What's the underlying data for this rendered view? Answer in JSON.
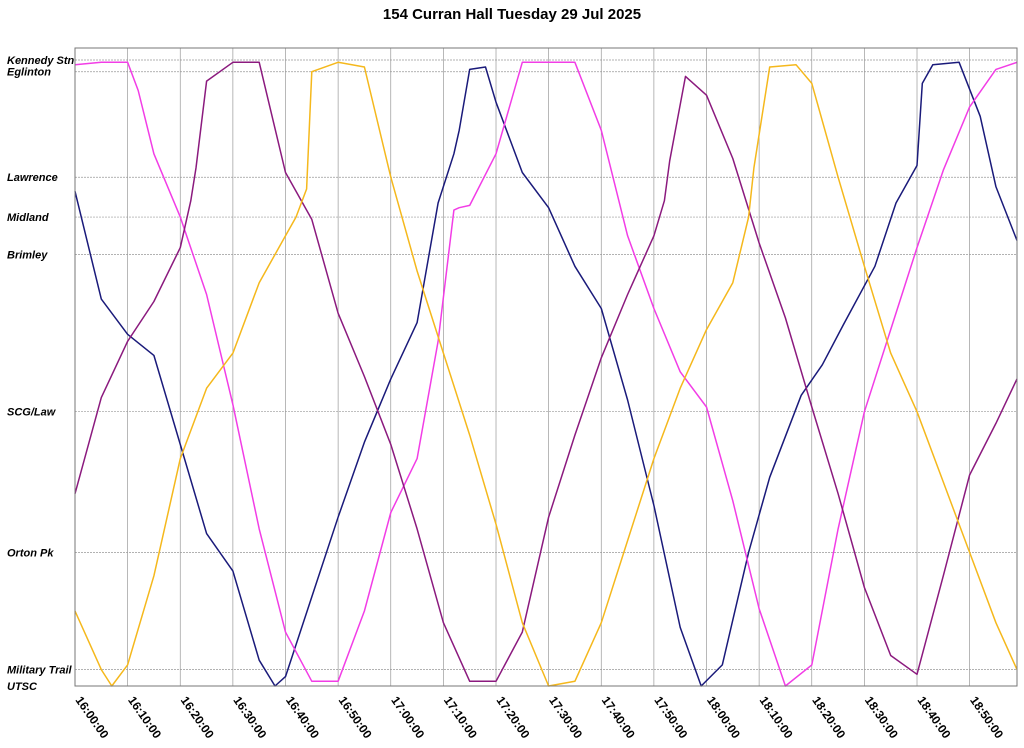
{
  "chart_data": {
    "type": "line",
    "title": "154 Curran Hall Tuesday 29 Jul 2025",
    "y_axis": {
      "stops": [
        {
          "name": "Kennedy Stn",
          "pos": 0
        },
        {
          "name": "Eglinton",
          "pos": 0.5
        },
        {
          "name": "Lawrence",
          "pos": 5
        },
        {
          "name": "Midland",
          "pos": 6.7
        },
        {
          "name": "Brimley",
          "pos": 8.3
        },
        {
          "name": "SCG/Law",
          "pos": 15
        },
        {
          "name": "Orton Pk",
          "pos": 21
        },
        {
          "name": "Military Trail",
          "pos": 26
        },
        {
          "name": "UTSC",
          "pos": 26.7
        }
      ],
      "range": [
        0,
        26.7
      ]
    },
    "x_axis": {
      "tick_labels": [
        "16:00:00",
        "16:10:00",
        "16:20:00",
        "16:30:00",
        "16:40:00",
        "16:50:00",
        "17:00:00",
        "17:10:00",
        "17:20:00",
        "17:30:00",
        "17:40:00",
        "17:50:00",
        "18:00:00",
        "18:10:00",
        "18:20:00",
        "18:30:00",
        "18:40:00",
        "18:50:00"
      ],
      "start": "16:00:00",
      "end": "18:59:00"
    },
    "grid": true,
    "series": [
      {
        "color": "#1a1a7a",
        "points": [
          [
            "16:00:00",
            5.6
          ],
          [
            "16:05:00",
            10.2
          ],
          [
            "16:10:00",
            11.7
          ],
          [
            "16:15:00",
            12.6
          ],
          [
            "16:20:00",
            16.4
          ],
          [
            "16:25:00",
            20.2
          ],
          [
            "16:30:00",
            21.8
          ],
          [
            "16:35:00",
            25.6
          ],
          [
            "16:38:00",
            26.7
          ],
          [
            "16:40:00",
            26.3
          ],
          [
            "16:45:00",
            22.9
          ],
          [
            "16:50:00",
            19.5
          ],
          [
            "16:55:00",
            16.3
          ],
          [
            "17:00:00",
            13.6
          ],
          [
            "17:05:00",
            11.2
          ],
          [
            "17:09:00",
            6.1
          ],
          [
            "17:12:00",
            4.0
          ],
          [
            "17:13:00",
            3.0
          ],
          [
            "17:15:00",
            0.4
          ],
          [
            "17:18:00",
            0.3
          ],
          [
            "17:20:00",
            1.8
          ],
          [
            "17:25:00",
            4.8
          ],
          [
            "17:30:00",
            6.3
          ],
          [
            "17:35:00",
            8.8
          ],
          [
            "17:40:00",
            10.6
          ],
          [
            "17:45:00",
            14.5
          ],
          [
            "17:50:00",
            19.0
          ],
          [
            "17:55:00",
            24.2
          ],
          [
            "17:59:00",
            26.7
          ],
          [
            "18:03:00",
            25.8
          ],
          [
            "18:08:00",
            21.0
          ],
          [
            "18:12:00",
            17.8
          ],
          [
            "18:18:00",
            14.3
          ],
          [
            "18:22:00",
            13.0
          ],
          [
            "18:26:00",
            11.3
          ],
          [
            "18:32:00",
            8.8
          ],
          [
            "18:36:00",
            6.1
          ],
          [
            "18:40:00",
            4.5
          ],
          [
            "18:41:00",
            1.0
          ],
          [
            "18:43:00",
            0.2
          ],
          [
            "18:48:00",
            0.1
          ],
          [
            "18:52:00",
            2.4
          ],
          [
            "18:55:00",
            5.4
          ],
          [
            "18:59:00",
            7.7
          ]
        ]
      },
      {
        "color": "#f23de6",
        "points": [
          [
            "16:00:00",
            0.2
          ],
          [
            "16:05:00",
            0.1
          ],
          [
            "16:10:00",
            0.1
          ],
          [
            "16:12:00",
            1.3
          ],
          [
            "16:15:00",
            4.0
          ],
          [
            "16:20:00",
            6.7
          ],
          [
            "16:25:00",
            10.0
          ],
          [
            "16:30:00",
            14.7
          ],
          [
            "16:35:00",
            20.0
          ],
          [
            "16:40:00",
            24.4
          ],
          [
            "16:45:00",
            26.5
          ],
          [
            "16:50:00",
            26.5
          ],
          [
            "16:55:00",
            23.5
          ],
          [
            "17:00:00",
            19.3
          ],
          [
            "17:05:00",
            17.0
          ],
          [
            "17:09:00",
            12.0
          ],
          [
            "17:12:00",
            6.4
          ],
          [
            "17:13:00",
            6.3
          ],
          [
            "17:15:00",
            6.2
          ],
          [
            "17:20:00",
            4.0
          ],
          [
            "17:25:00",
            0.1
          ],
          [
            "17:30:00",
            0.1
          ],
          [
            "17:35:00",
            0.1
          ],
          [
            "17:40:00",
            3.0
          ],
          [
            "17:45:00",
            7.5
          ],
          [
            "17:50:00",
            10.6
          ],
          [
            "17:55:00",
            13.3
          ],
          [
            "18:00:00",
            14.8
          ],
          [
            "18:05:00",
            18.8
          ],
          [
            "18:10:00",
            23.4
          ],
          [
            "18:15:00",
            26.7
          ],
          [
            "18:20:00",
            25.8
          ],
          [
            "18:25:00",
            20.0
          ],
          [
            "18:30:00",
            15.0
          ],
          [
            "18:35:00",
            11.5
          ],
          [
            "18:40:00",
            8.0
          ],
          [
            "18:45:00",
            4.7
          ],
          [
            "18:50:00",
            2.0
          ],
          [
            "18:55:00",
            0.4
          ],
          [
            "18:59:00",
            0.1
          ]
        ]
      },
      {
        "color": "#8b1a7e",
        "points": [
          [
            "16:00:00",
            18.5
          ],
          [
            "16:05:00",
            14.4
          ],
          [
            "16:10:00",
            12.0
          ],
          [
            "16:15:00",
            10.3
          ],
          [
            "16:20:00",
            8.0
          ],
          [
            "16:22:00",
            6.0
          ],
          [
            "16:23:00",
            4.6
          ],
          [
            "16:25:00",
            0.9
          ],
          [
            "16:30:00",
            0.1
          ],
          [
            "16:35:00",
            0.1
          ],
          [
            "16:40:00",
            4.8
          ],
          [
            "16:45:00",
            6.8
          ],
          [
            "16:50:00",
            10.8
          ],
          [
            "16:55:00",
            13.5
          ],
          [
            "17:00:00",
            16.4
          ],
          [
            "17:05:00",
            20.0
          ],
          [
            "17:10:00",
            24.0
          ],
          [
            "17:15:00",
            26.5
          ],
          [
            "17:20:00",
            26.5
          ],
          [
            "17:25:00",
            24.4
          ],
          [
            "17:30:00",
            19.5
          ],
          [
            "17:35:00",
            16.0
          ],
          [
            "17:40:00",
            12.7
          ],
          [
            "17:45:00",
            10.0
          ],
          [
            "17:50:00",
            7.5
          ],
          [
            "17:52:00",
            6.0
          ],
          [
            "17:53:00",
            4.3
          ],
          [
            "17:56:00",
            0.7
          ],
          [
            "18:00:00",
            1.5
          ],
          [
            "18:05:00",
            4.2
          ],
          [
            "18:10:00",
            7.8
          ],
          [
            "18:15:00",
            11.0
          ],
          [
            "18:20:00",
            14.8
          ],
          [
            "18:25:00",
            18.5
          ],
          [
            "18:30:00",
            22.5
          ],
          [
            "18:35:00",
            25.4
          ],
          [
            "18:40:00",
            26.2
          ],
          [
            "18:45:00",
            22.0
          ],
          [
            "18:50:00",
            17.7
          ],
          [
            "18:55:00",
            15.5
          ],
          [
            "18:59:00",
            13.6
          ]
        ]
      },
      {
        "color": "#f5b81c",
        "points": [
          [
            "16:00:00",
            23.5
          ],
          [
            "16:05:00",
            26.0
          ],
          [
            "16:07:00",
            26.7
          ],
          [
            "16:10:00",
            25.8
          ],
          [
            "16:15:00",
            22.0
          ],
          [
            "16:20:00",
            17.0
          ],
          [
            "16:25:00",
            14.0
          ],
          [
            "16:30:00",
            12.5
          ],
          [
            "16:35:00",
            9.5
          ],
          [
            "16:40:00",
            7.5
          ],
          [
            "16:42:00",
            6.7
          ],
          [
            "16:44:00",
            5.5
          ],
          [
            "16:45:00",
            0.5
          ],
          [
            "16:50:00",
            0.1
          ],
          [
            "16:55:00",
            0.3
          ],
          [
            "17:00:00",
            5.0
          ],
          [
            "17:05:00",
            9.0
          ],
          [
            "17:10:00",
            12.5
          ],
          [
            "17:15:00",
            16.0
          ],
          [
            "17:20:00",
            19.8
          ],
          [
            "17:25:00",
            24.0
          ],
          [
            "17:30:00",
            26.7
          ],
          [
            "17:35:00",
            26.5
          ],
          [
            "17:40:00",
            24.0
          ],
          [
            "17:45:00",
            20.5
          ],
          [
            "17:50:00",
            17.0
          ],
          [
            "17:55:00",
            14.0
          ],
          [
            "18:00:00",
            11.5
          ],
          [
            "18:05:00",
            9.5
          ],
          [
            "18:08:00",
            6.7
          ],
          [
            "18:09:00",
            4.6
          ],
          [
            "18:12:00",
            0.3
          ],
          [
            "18:17:00",
            0.2
          ],
          [
            "18:20:00",
            1.0
          ],
          [
            "18:25:00",
            5.0
          ],
          [
            "18:30:00",
            8.8
          ],
          [
            "18:35:00",
            12.5
          ],
          [
            "18:40:00",
            15.0
          ],
          [
            "18:45:00",
            18.0
          ],
          [
            "18:50:00",
            21.0
          ],
          [
            "18:55:00",
            24.0
          ],
          [
            "18:59:00",
            26.0
          ]
        ]
      }
    ]
  }
}
